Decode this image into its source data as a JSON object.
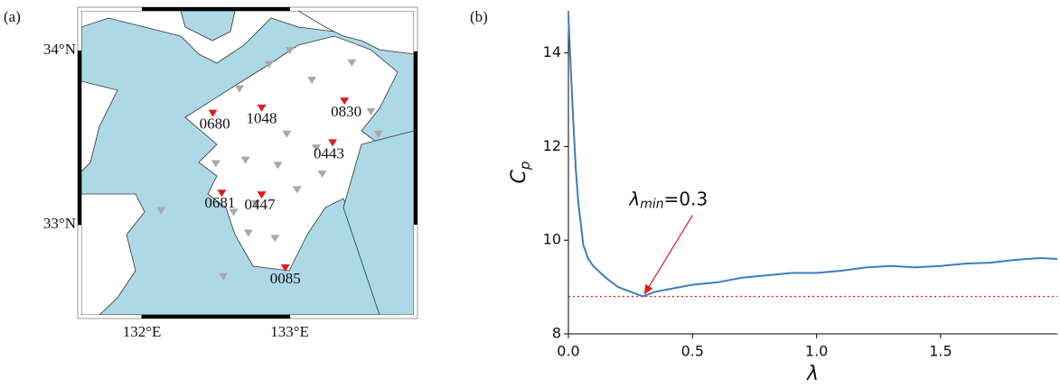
{
  "chart_data": [
    {
      "type": "map",
      "panel_label": "(a)",
      "xlim": [
        131.59,
        133.84
      ],
      "ylim": [
        32.48,
        34.23
      ],
      "xticks": [
        {
          "value": 132,
          "label": "132°E"
        },
        {
          "value": 133,
          "label": "133°E"
        }
      ],
      "yticks": [
        {
          "value": 33,
          "label": "33°N"
        },
        {
          "value": 34,
          "label": "34°N"
        }
      ],
      "stations": {
        "name": "selected",
        "color": "#e31a1c",
        "labels": [
          "0680",
          "1048",
          "0830",
          "0443",
          "0681",
          "0447",
          "0085"
        ],
        "lon": [
          132.48,
          132.81,
          133.37,
          133.29,
          132.54,
          132.81,
          132.97
        ],
        "lat": [
          33.64,
          33.67,
          33.71,
          33.47,
          33.18,
          33.17,
          32.75
        ]
      },
      "other_stations": {
        "color": "#a8a8a8",
        "lon": [
          133.0,
          133.42,
          132.86,
          133.15,
          133.55,
          132.66,
          132.98,
          133.6,
          132.7,
          133.18,
          132.5,
          132.92,
          133.22,
          132.62,
          133.05,
          132.72,
          132.9,
          132.77,
          132.55,
          132.13
        ],
        "lat": [
          34.0,
          33.93,
          33.92,
          33.83,
          33.65,
          33.78,
          33.52,
          33.52,
          33.37,
          33.44,
          33.35,
          33.34,
          33.29,
          33.07,
          33.2,
          32.95,
          32.92,
          33.12,
          32.7,
          33.08
        ]
      }
    },
    {
      "type": "line",
      "panel_label": "(b)",
      "xlabel": "λ",
      "ylabel": "C",
      "ylabel_subscript": "p",
      "xlim": [
        0,
        1.97
      ],
      "ylim": [
        8,
        14.9
      ],
      "xticks": [
        {
          "value": 0,
          "label": "0.0"
        },
        0.5,
        {
          "value": 1,
          "label": "1.0"
        },
        1.5
      ],
      "yticks": [
        8,
        10,
        12,
        14
      ],
      "x": [
        0,
        0.01,
        0.02,
        0.03,
        0.04,
        0.06,
        0.08,
        0.1,
        0.15,
        0.2,
        0.25,
        0.3,
        0.35,
        0.4,
        0.5,
        0.6,
        0.7,
        0.8,
        0.9,
        1.0,
        1.1,
        1.2,
        1.3,
        1.4,
        1.5,
        1.6,
        1.7,
        1.8,
        1.9,
        1.97
      ],
      "series": [
        {
          "color": "#3a7dbf",
          "values": [
            14.8,
            13.6,
            12.5,
            11.5,
            10.8,
            9.9,
            9.6,
            9.45,
            9.2,
            9.0,
            8.9,
            8.8,
            8.9,
            8.95,
            9.05,
            9.1,
            9.2,
            9.25,
            9.3,
            9.3,
            9.35,
            9.42,
            9.45,
            9.42,
            9.45,
            9.5,
            9.52,
            9.58,
            9.62,
            9.6
          ]
        }
      ],
      "hline": {
        "value": 8.8,
        "color": "#e31a1c"
      },
      "annotation": {
        "symbol": "λ",
        "subscript": "min",
        "text": "=0.3",
        "x": 0.3,
        "y": 8.8,
        "color": "#e31a1c"
      }
    }
  ]
}
